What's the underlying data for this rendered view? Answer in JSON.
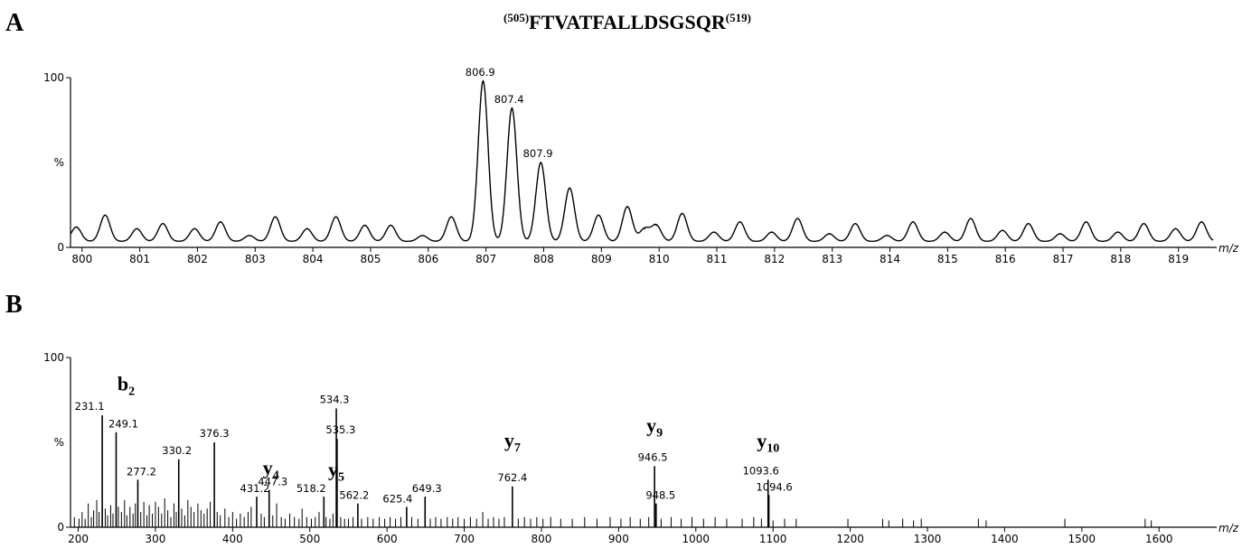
{
  "panels": {
    "a": {
      "letter": "A"
    },
    "b": {
      "letter": "B"
    }
  },
  "peptide": {
    "start": "(505)",
    "sequence": "FTVATFALLDSGSQR",
    "end": "(519)"
  },
  "chart_data": [
    {
      "type": "line",
      "panel": "A",
      "xlabel": "m/z",
      "ylabel_top": "100",
      "ylabel_mid": "%",
      "ylabel_zero": "0",
      "xlim": [
        799.8,
        819.6
      ],
      "ylim": [
        0,
        100
      ],
      "xticks": [
        800,
        801,
        802,
        803,
        804,
        805,
        806,
        807,
        808,
        809,
        810,
        811,
        812,
        813,
        814,
        815,
        816,
        817,
        818,
        819
      ],
      "peaks": [
        {
          "x": 799.9,
          "y": 12
        },
        {
          "x": 800.4,
          "y": 19
        },
        {
          "x": 800.95,
          "y": 11
        },
        {
          "x": 801.4,
          "y": 14
        },
        {
          "x": 801.95,
          "y": 11
        },
        {
          "x": 802.4,
          "y": 15
        },
        {
          "x": 802.9,
          "y": 7
        },
        {
          "x": 803.35,
          "y": 18
        },
        {
          "x": 803.9,
          "y": 11
        },
        {
          "x": 804.4,
          "y": 18
        },
        {
          "x": 804.9,
          "y": 13
        },
        {
          "x": 805.35,
          "y": 13
        },
        {
          "x": 805.9,
          "y": 7
        },
        {
          "x": 806.4,
          "y": 18
        },
        {
          "x": 806.95,
          "y": 98
        },
        {
          "x": 807.45,
          "y": 82
        },
        {
          "x": 807.95,
          "y": 50
        },
        {
          "x": 808.45,
          "y": 35
        },
        {
          "x": 808.95,
          "y": 19
        },
        {
          "x": 809.45,
          "y": 24
        },
        {
          "x": 809.75,
          "y": 11
        },
        {
          "x": 809.95,
          "y": 13
        },
        {
          "x": 810.4,
          "y": 20
        },
        {
          "x": 810.95,
          "y": 9
        },
        {
          "x": 811.4,
          "y": 15
        },
        {
          "x": 811.95,
          "y": 9
        },
        {
          "x": 812.4,
          "y": 17
        },
        {
          "x": 812.95,
          "y": 8
        },
        {
          "x": 813.4,
          "y": 14
        },
        {
          "x": 813.95,
          "y": 7
        },
        {
          "x": 814.4,
          "y": 15
        },
        {
          "x": 814.95,
          "y": 9
        },
        {
          "x": 815.4,
          "y": 17
        },
        {
          "x": 815.95,
          "y": 10
        },
        {
          "x": 816.4,
          "y": 14
        },
        {
          "x": 816.95,
          "y": 8
        },
        {
          "x": 817.4,
          "y": 15
        },
        {
          "x": 817.95,
          "y": 9
        },
        {
          "x": 818.4,
          "y": 14
        },
        {
          "x": 818.95,
          "y": 11
        },
        {
          "x": 819.4,
          "y": 15
        }
      ],
      "annotations": [
        {
          "x": 806.9,
          "y": 98,
          "text": "806.9"
        },
        {
          "x": 807.4,
          "y": 82,
          "text": "807.4"
        },
        {
          "x": 807.9,
          "y": 50,
          "text": "807.9"
        }
      ]
    },
    {
      "type": "bar",
      "panel": "B",
      "xlabel": "m/z",
      "ylabel_top": "100",
      "ylabel_mid": "%",
      "ylabel_zero": "0",
      "xlim": [
        190,
        1670
      ],
      "ylim": [
        0,
        100
      ],
      "xticks": [
        200,
        300,
        400,
        500,
        600,
        700,
        800,
        900,
        1000,
        1100,
        1200,
        1300,
        1400,
        1500,
        1600
      ],
      "labeled_peaks": [
        {
          "x": 231.1,
          "y": 66,
          "text": "231.1"
        },
        {
          "x": 249.1,
          "y": 56,
          "text": "249.1"
        },
        {
          "x": 277.2,
          "y": 28,
          "text": "277.2"
        },
        {
          "x": 330.2,
          "y": 40,
          "text": "330.2"
        },
        {
          "x": 376.3,
          "y": 50,
          "text": "376.3"
        },
        {
          "x": 431.2,
          "y": 18,
          "text": "431.2"
        },
        {
          "x": 447.3,
          "y": 22,
          "text": "447.3"
        },
        {
          "x": 518.2,
          "y": 18,
          "text": "518.2"
        },
        {
          "x": 534.3,
          "y": 70,
          "text": "534.3"
        },
        {
          "x": 535.3,
          "y": 52,
          "text": "535.3"
        },
        {
          "x": 562.2,
          "y": 14,
          "text": "562.2"
        },
        {
          "x": 625.4,
          "y": 12,
          "text": "625.4"
        },
        {
          "x": 649.3,
          "y": 18,
          "text": "649.3"
        },
        {
          "x": 762.4,
          "y": 24,
          "text": "762.4"
        },
        {
          "x": 946.5,
          "y": 36,
          "text": "946.5"
        },
        {
          "x": 948.5,
          "y": 14,
          "text": "948.5"
        },
        {
          "x": 1093.6,
          "y": 28,
          "text": "1093.6"
        },
        {
          "x": 1094.6,
          "y": 19,
          "text": "1094.6"
        }
      ],
      "ion_labels": [
        {
          "ion": "b",
          "sub": "2",
          "x": 249.1
        },
        {
          "ion": "y",
          "sub": "4",
          "x": 447.3
        },
        {
          "ion": "y",
          "sub": "5",
          "x": 534.3
        },
        {
          "ion": "y",
          "sub": "7",
          "x": 762.4
        },
        {
          "ion": "y",
          "sub": "9",
          "x": 946.5
        },
        {
          "ion": "y",
          "sub": "10",
          "x": 1093.6
        }
      ],
      "minor_peaks": [
        {
          "x": 195,
          "y": 6
        },
        {
          "x": 201,
          "y": 5
        },
        {
          "x": 205,
          "y": 9
        },
        {
          "x": 209,
          "y": 5
        },
        {
          "x": 213,
          "y": 14
        },
        {
          "x": 217,
          "y": 6
        },
        {
          "x": 220,
          "y": 10
        },
        {
          "x": 224,
          "y": 16
        },
        {
          "x": 227,
          "y": 9
        },
        {
          "x": 235,
          "y": 11
        },
        {
          "x": 238,
          "y": 7
        },
        {
          "x": 242,
          "y": 13
        },
        {
          "x": 245,
          "y": 8
        },
        {
          "x": 252,
          "y": 12
        },
        {
          "x": 256,
          "y": 9
        },
        {
          "x": 260,
          "y": 16
        },
        {
          "x": 263,
          "y": 7
        },
        {
          "x": 267,
          "y": 12
        },
        {
          "x": 271,
          "y": 8
        },
        {
          "x": 274,
          "y": 14
        },
        {
          "x": 281,
          "y": 9
        },
        {
          "x": 285,
          "y": 15
        },
        {
          "x": 289,
          "y": 7
        },
        {
          "x": 292,
          "y": 13
        },
        {
          "x": 296,
          "y": 8
        },
        {
          "x": 300,
          "y": 15
        },
        {
          "x": 304,
          "y": 12
        },
        {
          "x": 308,
          "y": 8
        },
        {
          "x": 312,
          "y": 17
        },
        {
          "x": 316,
          "y": 10
        },
        {
          "x": 320,
          "y": 6
        },
        {
          "x": 324,
          "y": 14
        },
        {
          "x": 327,
          "y": 9
        },
        {
          "x": 334,
          "y": 11
        },
        {
          "x": 338,
          "y": 7
        },
        {
          "x": 342,
          "y": 16
        },
        {
          "x": 346,
          "y": 12
        },
        {
          "x": 350,
          "y": 9
        },
        {
          "x": 355,
          "y": 14
        },
        {
          "x": 359,
          "y": 10
        },
        {
          "x": 363,
          "y": 8
        },
        {
          "x": 367,
          "y": 11
        },
        {
          "x": 371,
          "y": 15
        },
        {
          "x": 380,
          "y": 9
        },
        {
          "x": 384,
          "y": 7
        },
        {
          "x": 390,
          "y": 11
        },
        {
          "x": 395,
          "y": 6
        },
        {
          "x": 400,
          "y": 9
        },
        {
          "x": 405,
          "y": 5
        },
        {
          "x": 410,
          "y": 8
        },
        {
          "x": 415,
          "y": 6
        },
        {
          "x": 420,
          "y": 9
        },
        {
          "x": 424,
          "y": 12
        },
        {
          "x": 437,
          "y": 8
        },
        {
          "x": 441,
          "y": 6
        },
        {
          "x": 452,
          "y": 7
        },
        {
          "x": 457,
          "y": 14
        },
        {
          "x": 463,
          "y": 6
        },
        {
          "x": 468,
          "y": 5
        },
        {
          "x": 474,
          "y": 8
        },
        {
          "x": 480,
          "y": 6
        },
        {
          "x": 486,
          "y": 5
        },
        {
          "x": 490,
          "y": 11
        },
        {
          "x": 496,
          "y": 6
        },
        {
          "x": 502,
          "y": 5
        },
        {
          "x": 507,
          "y": 6
        },
        {
          "x": 512,
          "y": 9
        },
        {
          "x": 521,
          "y": 6
        },
        {
          "x": 526,
          "y": 5
        },
        {
          "x": 530,
          "y": 8
        },
        {
          "x": 540,
          "y": 6
        },
        {
          "x": 545,
          "y": 5
        },
        {
          "x": 550,
          "y": 5
        },
        {
          "x": 556,
          "y": 6
        },
        {
          "x": 567,
          "y": 5
        },
        {
          "x": 575,
          "y": 6
        },
        {
          "x": 582,
          "y": 5
        },
        {
          "x": 590,
          "y": 6
        },
        {
          "x": 597,
          "y": 5
        },
        {
          "x": 604,
          "y": 6
        },
        {
          "x": 611,
          "y": 5
        },
        {
          "x": 618,
          "y": 6
        },
        {
          "x": 632,
          "y": 6
        },
        {
          "x": 640,
          "y": 5
        },
        {
          "x": 656,
          "y": 5
        },
        {
          "x": 663,
          "y": 6
        },
        {
          "x": 670,
          "y": 5
        },
        {
          "x": 678,
          "y": 6
        },
        {
          "x": 685,
          "y": 5
        },
        {
          "x": 692,
          "y": 6
        },
        {
          "x": 700,
          "y": 5
        },
        {
          "x": 708,
          "y": 6
        },
        {
          "x": 716,
          "y": 5
        },
        {
          "x": 724,
          "y": 9
        },
        {
          "x": 731,
          "y": 5
        },
        {
          "x": 738,
          "y": 6
        },
        {
          "x": 745,
          "y": 5
        },
        {
          "x": 752,
          "y": 6
        },
        {
          "x": 770,
          "y": 5
        },
        {
          "x": 778,
          "y": 6
        },
        {
          "x": 786,
          "y": 5
        },
        {
          "x": 794,
          "y": 6
        },
        {
          "x": 802,
          "y": 5
        },
        {
          "x": 812,
          "y": 6
        },
        {
          "x": 825,
          "y": 5
        },
        {
          "x": 840,
          "y": 5
        },
        {
          "x": 856,
          "y": 6
        },
        {
          "x": 872,
          "y": 5
        },
        {
          "x": 889,
          "y": 6
        },
        {
          "x": 903,
          "y": 5
        },
        {
          "x": 915,
          "y": 6
        },
        {
          "x": 928,
          "y": 5
        },
        {
          "x": 939,
          "y": 6
        },
        {
          "x": 955,
          "y": 5
        },
        {
          "x": 968,
          "y": 6
        },
        {
          "x": 981,
          "y": 5
        },
        {
          "x": 995,
          "y": 6
        },
        {
          "x": 1010,
          "y": 5
        },
        {
          "x": 1025,
          "y": 6
        },
        {
          "x": 1040,
          "y": 5
        },
        {
          "x": 1060,
          "y": 5
        },
        {
          "x": 1075,
          "y": 6
        },
        {
          "x": 1085,
          "y": 5
        },
        {
          "x": 1100,
          "y": 4
        },
        {
          "x": 1115,
          "y": 5
        },
        {
          "x": 1130,
          "y": 5
        },
        {
          "x": 1197,
          "y": 5
        },
        {
          "x": 1242,
          "y": 5
        },
        {
          "x": 1250,
          "y": 4
        },
        {
          "x": 1268,
          "y": 5
        },
        {
          "x": 1282,
          "y": 4
        },
        {
          "x": 1292,
          "y": 5
        },
        {
          "x": 1366,
          "y": 5
        },
        {
          "x": 1376,
          "y": 4
        },
        {
          "x": 1478,
          "y": 5
        },
        {
          "x": 1582,
          "y": 5
        },
        {
          "x": 1590,
          "y": 4
        }
      ]
    }
  ]
}
